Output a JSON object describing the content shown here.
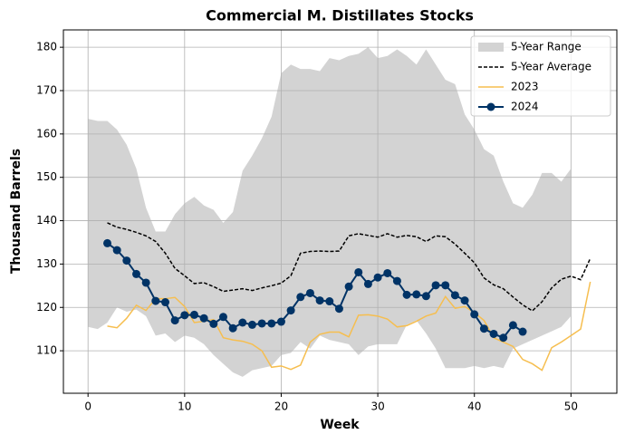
{
  "chart_data": {
    "type": "line",
    "title": "Commercial M. Distillates Stocks",
    "xlabel": "Week",
    "ylabel": "Thousand Barrels",
    "xlim": [
      -2.55,
      54.75
    ],
    "ylim": [
      100.2,
      184
    ],
    "xticks": [
      0,
      10,
      20,
      30,
      40,
      50
    ],
    "yticks": [
      110,
      120,
      130,
      140,
      150,
      160,
      170,
      180
    ],
    "grid": true,
    "legend": "upper right",
    "range": {
      "name": "5-Year Range",
      "color": "#d3d3d3",
      "x": [
        0,
        1,
        2,
        3,
        4,
        5,
        6,
        7,
        8,
        9,
        10,
        11,
        12,
        13,
        14,
        15,
        16,
        17,
        18,
        19,
        20,
        21,
        22,
        23,
        24,
        25,
        26,
        27,
        28,
        29,
        30,
        31,
        32,
        33,
        34,
        35,
        36,
        37,
        38,
        39,
        40,
        41,
        42,
        43,
        44,
        45,
        46,
        47,
        48,
        49,
        50
      ],
      "upper": [
        163.5,
        163,
        163,
        161,
        157.5,
        152,
        143,
        137.5,
        137.5,
        141.5,
        144,
        145.5,
        143.5,
        142.5,
        139.5,
        142,
        151.5,
        155,
        159,
        164,
        174,
        176,
        175,
        175,
        174.5,
        177.5,
        177,
        178,
        178.5,
        180,
        177.5,
        178,
        179.5,
        178,
        176,
        179.5,
        176,
        172.5,
        171.5,
        164.5,
        161,
        156.5,
        155,
        149,
        144,
        143,
        146,
        151,
        151,
        149,
        152
      ],
      "lower": [
        115.5,
        115,
        116.5,
        120,
        119,
        119.5,
        118,
        113.5,
        114,
        112,
        113.5,
        113,
        111.5,
        109,
        107,
        105,
        104,
        105.5,
        106,
        106.5,
        109,
        109.5,
        112,
        110.5,
        113.5,
        112.5,
        112,
        111.5,
        109,
        111,
        111.5,
        111.5,
        111.5,
        116,
        117,
        114,
        110.5,
        106,
        106,
        106,
        106.5,
        106,
        106.5,
        106,
        110.5,
        111.5,
        112.5,
        113.5,
        114.5,
        115.5,
        118
      ]
    },
    "series": [
      {
        "name": "5-Year Average",
        "color": "#000000",
        "style": "dashed",
        "markers": false,
        "x": [
          2,
          3,
          4,
          5,
          6,
          7,
          8,
          9,
          10,
          11,
          12,
          13,
          14,
          15,
          16,
          17,
          18,
          19,
          20,
          21,
          22,
          23,
          24,
          25,
          26,
          27,
          28,
          29,
          30,
          31,
          32,
          33,
          34,
          35,
          36,
          37,
          38,
          39,
          40,
          41,
          42,
          43,
          44,
          45,
          46,
          47,
          48,
          49,
          50,
          51,
          52
        ],
        "values": [
          139.5,
          138.5,
          138,
          137.3,
          136.5,
          135.2,
          132.5,
          129,
          127.3,
          125.5,
          125.7,
          124.8,
          123.7,
          124,
          124.3,
          123.9,
          124.5,
          125,
          125.6,
          127.3,
          132.5,
          132.9,
          133,
          132.9,
          133,
          136.5,
          137,
          136.6,
          136.2,
          137,
          136.2,
          136.6,
          136.3,
          135.2,
          136.5,
          136.3,
          134.6,
          132.5,
          130.3,
          126.8,
          125.2,
          124.3,
          122.4,
          120.6,
          119.2,
          121.3,
          124.5,
          126.5,
          127.2,
          126.4,
          131.3
        ]
      },
      {
        "name": "2023",
        "color": "#f6be4f",
        "style": "solid",
        "markers": false,
        "x": [
          2,
          3,
          4,
          5,
          6,
          7,
          8,
          9,
          10,
          11,
          12,
          13,
          14,
          15,
          16,
          17,
          18,
          19,
          20,
          21,
          22,
          23,
          24,
          25,
          26,
          27,
          28,
          29,
          30,
          31,
          32,
          33,
          34,
          35,
          36,
          37,
          38,
          39,
          40,
          41,
          42,
          43,
          44,
          45,
          46,
          47,
          48,
          49,
          50,
          51,
          52
        ],
        "values": [
          115.7,
          115.3,
          117.5,
          120.5,
          119.3,
          122,
          122,
          122.3,
          120.2,
          116.5,
          116.8,
          117.2,
          113,
          112.5,
          112.2,
          111.5,
          110,
          106.2,
          106.5,
          105.7,
          106.7,
          112,
          113.8,
          114.3,
          114.3,
          113.2,
          118.2,
          118.3,
          118,
          117.3,
          115.5,
          115.8,
          116.8,
          118,
          118.7,
          122.5,
          119.8,
          120.2,
          118.8,
          117,
          113,
          112,
          111,
          108,
          107,
          105.5,
          110.7,
          112,
          113.5,
          115,
          125.9
        ]
      },
      {
        "name": "2024",
        "color": "#003366",
        "style": "solid",
        "markers": true,
        "x": [
          2,
          3,
          4,
          5,
          6,
          7,
          8,
          9,
          10,
          11,
          12,
          13,
          14,
          15,
          16,
          17,
          18,
          19,
          20,
          21,
          22,
          23,
          24,
          25,
          26,
          27,
          28,
          29,
          30,
          31,
          32,
          33,
          34,
          35,
          36,
          37,
          38,
          39,
          40,
          41,
          42,
          43,
          44,
          45
        ],
        "values": [
          134.8,
          133.2,
          130.8,
          127.7,
          125.7,
          121.5,
          121.2,
          117,
          118.2,
          118.3,
          117.5,
          116.2,
          117.8,
          115.2,
          116.5,
          116,
          116.3,
          116.3,
          116.7,
          119.3,
          122.4,
          123.3,
          121.6,
          121.4,
          119.7,
          124.8,
          128.1,
          125.4,
          126.9,
          127.9,
          126.1,
          122.9,
          123,
          122.6,
          125.1,
          125.1,
          122.8,
          121.6,
          118.4,
          115.1,
          113.9,
          113,
          115.9,
          114.4
        ]
      }
    ]
  }
}
